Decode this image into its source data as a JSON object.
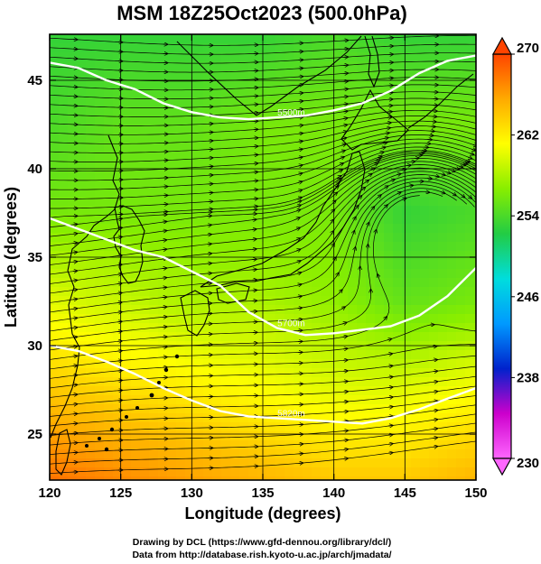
{
  "chart_data": {
    "type": "map",
    "title": "MSM 18Z25Oct2023 (500.0hPa)",
    "xlabel": "Longitude (degrees)",
    "ylabel": "Latitude  (degrees)",
    "xlim": [
      120,
      150
    ],
    "ylim": [
      22.4,
      47.6
    ],
    "x_ticks": [
      120,
      125,
      130,
      135,
      140,
      145,
      150
    ],
    "y_ticks": [
      25,
      30,
      35,
      40,
      45
    ],
    "colorbar": {
      "min": 230,
      "max": 270,
      "ticks": [
        230,
        238,
        246,
        254,
        262,
        270
      ],
      "colors": [
        "#ff66ff",
        "#cc00cc",
        "#0022cc",
        "#0099ff",
        "#00dddd",
        "#22cc44",
        "#88ee00",
        "#ffff00",
        "#ffaa00",
        "#ff4400"
      ]
    },
    "contours": [
      {
        "label": "5500m",
        "points": [
          [
            120,
            46.0
          ],
          [
            122,
            45.7
          ],
          [
            124,
            45.0
          ],
          [
            126,
            44.5
          ],
          [
            128,
            43.7
          ],
          [
            130,
            43.2
          ],
          [
            132,
            42.9
          ],
          [
            134,
            42.8
          ],
          [
            136,
            42.9
          ],
          [
            138,
            43.0
          ],
          [
            140,
            43.3
          ],
          [
            142,
            43.7
          ],
          [
            144,
            44.4
          ],
          [
            146,
            45.4
          ],
          [
            148,
            46.1
          ],
          [
            150,
            46.4
          ]
        ]
      },
      {
        "label": "5700m",
        "points": [
          [
            120,
            37.2
          ],
          [
            122,
            36.6
          ],
          [
            124,
            36.0
          ],
          [
            126,
            35.4
          ],
          [
            128,
            35.0
          ],
          [
            130,
            34.2
          ],
          [
            132,
            33.4
          ],
          [
            134,
            31.9
          ],
          [
            136,
            31.0
          ],
          [
            138,
            30.6
          ],
          [
            140,
            30.7
          ],
          [
            142,
            30.9
          ],
          [
            144,
            31.1
          ],
          [
            146,
            31.7
          ],
          [
            148,
            32.8
          ],
          [
            150,
            34.4
          ]
        ]
      },
      {
        "label": "5820m",
        "points": [
          [
            120,
            30.0
          ],
          [
            122,
            29.7
          ],
          [
            124,
            29.1
          ],
          [
            126,
            28.4
          ],
          [
            128,
            27.6
          ],
          [
            130,
            26.9
          ],
          [
            132,
            26.3
          ],
          [
            134,
            26.0
          ],
          [
            136,
            25.9
          ],
          [
            138,
            25.8
          ],
          [
            140,
            25.7
          ],
          [
            142,
            25.6
          ],
          [
            144,
            25.9
          ],
          [
            146,
            26.4
          ],
          [
            148,
            27.0
          ],
          [
            150,
            27.6
          ]
        ]
      }
    ],
    "temperature_field": {
      "units": "K",
      "rows": [
        {
          "lat": 47.6,
          "lons": [
            120,
            125,
            130,
            135,
            140,
            145,
            150
          ],
          "values": [
            253,
            253,
            253,
            253,
            254,
            253,
            253
          ]
        },
        {
          "lat": 42.5,
          "lons": [
            120,
            125,
            130,
            135,
            140,
            145,
            150
          ],
          "values": [
            254,
            255,
            255,
            256,
            256,
            256,
            256
          ]
        },
        {
          "lat": 37.5,
          "lons": [
            120,
            125,
            130,
            135,
            140,
            145,
            150
          ],
          "values": [
            256,
            256,
            256,
            256,
            256,
            253,
            254
          ]
        },
        {
          "lat": 32.5,
          "lons": [
            120,
            125,
            130,
            135,
            140,
            145,
            150
          ],
          "values": [
            260,
            259,
            258,
            258,
            257,
            255,
            256
          ]
        },
        {
          "lat": 27.5,
          "lons": [
            120,
            125,
            130,
            135,
            140,
            145,
            150
          ],
          "values": [
            264,
            263,
            262,
            261,
            260,
            260,
            261
          ]
        },
        {
          "lat": 22.4,
          "lons": [
            120,
            125,
            130,
            135,
            140,
            145,
            150
          ],
          "values": [
            268,
            267,
            266,
            265,
            264,
            264,
            265
          ]
        }
      ]
    },
    "wind": {
      "prevailing": "westerly",
      "cyclonic_center": [
        146,
        37.0
      ]
    }
  },
  "credits": [
    "Drawing by DCL (https://www.gfd-dennou.org/library/dcl/)",
    "Data from http://database.rish.kyoto-u.ac.jp/arch/jmadata/"
  ]
}
